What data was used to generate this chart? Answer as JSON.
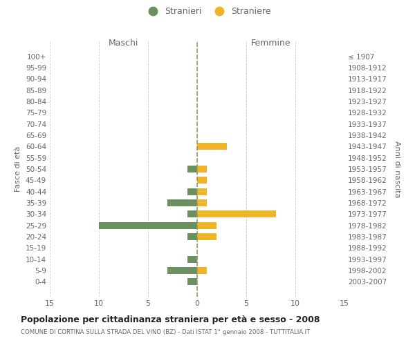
{
  "age_groups": [
    "100+",
    "95-99",
    "90-94",
    "85-89",
    "80-84",
    "75-79",
    "70-74",
    "65-69",
    "60-64",
    "55-59",
    "50-54",
    "45-49",
    "40-44",
    "35-39",
    "30-34",
    "25-29",
    "20-24",
    "15-19",
    "10-14",
    "5-9",
    "0-4"
  ],
  "birth_years": [
    "≤ 1907",
    "1908-1912",
    "1913-1917",
    "1918-1922",
    "1923-1927",
    "1928-1932",
    "1933-1937",
    "1938-1942",
    "1943-1947",
    "1948-1952",
    "1953-1957",
    "1958-1962",
    "1963-1967",
    "1968-1972",
    "1973-1977",
    "1978-1982",
    "1983-1987",
    "1988-1992",
    "1993-1997",
    "1998-2002",
    "2003-2007"
  ],
  "maschi": [
    0,
    0,
    0,
    0,
    0,
    0,
    0,
    0,
    0,
    0,
    1,
    0,
    1,
    3,
    1,
    10,
    1,
    0,
    1,
    3,
    1
  ],
  "femmine": [
    0,
    0,
    0,
    0,
    0,
    0,
    0,
    0,
    3,
    0,
    1,
    1,
    1,
    1,
    8,
    2,
    2,
    0,
    0,
    1,
    0
  ],
  "color_maschi": "#6b8f5e",
  "color_femmine": "#f0b429",
  "title": "Popolazione per cittadinanza straniera per età e sesso - 2008",
  "subtitle": "COMUNE DI CORTINA SULLA STRADA DEL VINO (BZ) - Dati ISTAT 1° gennaio 2008 - TUTTITALIA.IT",
  "xlabel_left": "Maschi",
  "xlabel_right": "Femmine",
  "ylabel_left": "Fasce di età",
  "ylabel_right": "Anni di nascita",
  "legend_maschi": "Stranieri",
  "legend_femmine": "Straniere",
  "xlim": 15,
  "background_color": "#ffffff",
  "grid_color": "#cccccc",
  "text_color": "#666666"
}
